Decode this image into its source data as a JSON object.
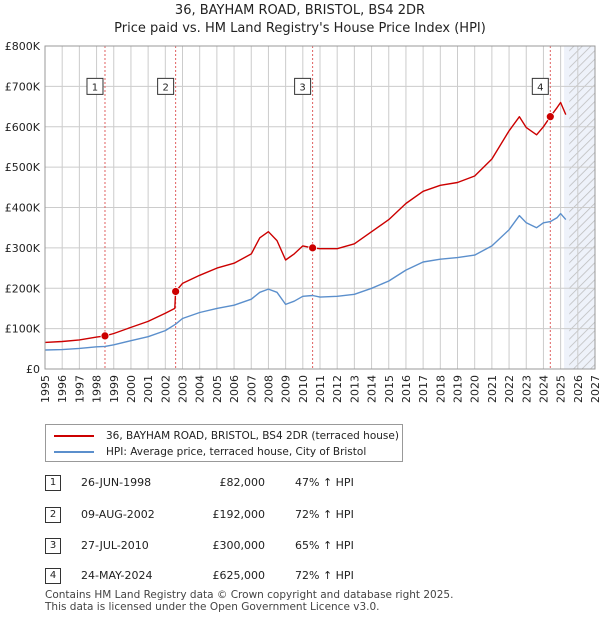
{
  "title_line1": "36, BAYHAM ROAD, BRISTOL, BS4 2DR",
  "title_line2": "Price paid vs. HM Land Registry's House Price Index (HPI)",
  "legend": {
    "property": "36, BAYHAM ROAD, BRISTOL, BS4 2DR (terraced house)",
    "hpi": "HPI: Average price, terraced house, City of Bristol"
  },
  "transactions": [
    {
      "num": "1",
      "date": "26-JUN-1998",
      "price": "£82,000",
      "hpi": "47% ↑ HPI"
    },
    {
      "num": "2",
      "date": "09-AUG-2002",
      "price": "£192,000",
      "hpi": "72% ↑ HPI"
    },
    {
      "num": "3",
      "date": "27-JUL-2010",
      "price": "£300,000",
      "hpi": "65% ↑ HPI"
    },
    {
      "num": "4",
      "date": "24-MAY-2024",
      "price": "£625,000",
      "hpi": "72% ↑ HPI"
    }
  ],
  "footer_line1": "Contains HM Land Registry data © Crown copyright and database right 2025.",
  "footer_line2": "This data is licensed under the Open Government Licence v3.0.",
  "colors": {
    "property": "#cc0000",
    "hpi": "#5b8fcc",
    "marker": "#cc0000",
    "vline": "#e06060",
    "grid": "#cccccc",
    "shade": "#eef2fa"
  },
  "chart_data": {
    "type": "line",
    "xlim": [
      1995,
      2027
    ],
    "ylim": [
      0,
      800000
    ],
    "x_ticks": [
      1995,
      1996,
      1997,
      1998,
      1999,
      2000,
      2001,
      2002,
      2003,
      2004,
      2005,
      2006,
      2007,
      2008,
      2009,
      2010,
      2011,
      2012,
      2013,
      2014,
      2015,
      2016,
      2017,
      2018,
      2019,
      2020,
      2021,
      2022,
      2023,
      2024,
      2025,
      2026,
      2027
    ],
    "y_ticks": [
      {
        "value": 0,
        "label": "£0"
      },
      {
        "value": 100000,
        "label": "£100K"
      },
      {
        "value": 200000,
        "label": "£200K"
      },
      {
        "value": 300000,
        "label": "£300K"
      },
      {
        "value": 400000,
        "label": "£400K"
      },
      {
        "value": 500000,
        "label": "£500K"
      },
      {
        "value": 600000,
        "label": "£600K"
      },
      {
        "value": 700000,
        "label": "£700K"
      },
      {
        "value": 800000,
        "label": "£800K"
      }
    ],
    "shaded_from": 2025.2,
    "hatched_from": 2025.5,
    "sales": [
      {
        "label": "1",
        "x": 1998.49,
        "y": 82000
      },
      {
        "label": "2",
        "x": 2002.6,
        "y": 192000
      },
      {
        "label": "3",
        "x": 2010.57,
        "y": 300000
      },
      {
        "label": "4",
        "x": 2024.4,
        "y": 625000
      }
    ],
    "series": [
      {
        "name": "36, BAYHAM ROAD, BRISTOL, BS4 2DR (terraced house)",
        "points": [
          [
            1995.0,
            66000
          ],
          [
            1996.0,
            68000
          ],
          [
            1997.0,
            72000
          ],
          [
            1998.0,
            79000
          ],
          [
            1998.49,
            82000
          ],
          [
            1999.0,
            88000
          ],
          [
            2000.0,
            103000
          ],
          [
            2001.0,
            118000
          ],
          [
            2002.0,
            138000
          ],
          [
            2002.55,
            150000
          ],
          [
            2002.6,
            192000
          ],
          [
            2003.0,
            212000
          ],
          [
            2004.0,
            232000
          ],
          [
            2005.0,
            250000
          ],
          [
            2006.0,
            262000
          ],
          [
            2007.0,
            285000
          ],
          [
            2007.5,
            325000
          ],
          [
            2008.0,
            340000
          ],
          [
            2008.5,
            318000
          ],
          [
            2009.0,
            270000
          ],
          [
            2009.5,
            285000
          ],
          [
            2010.0,
            305000
          ],
          [
            2010.57,
            300000
          ],
          [
            2011.0,
            298000
          ],
          [
            2012.0,
            298000
          ],
          [
            2013.0,
            310000
          ],
          [
            2014.0,
            340000
          ],
          [
            2015.0,
            370000
          ],
          [
            2016.0,
            410000
          ],
          [
            2017.0,
            440000
          ],
          [
            2018.0,
            455000
          ],
          [
            2019.0,
            462000
          ],
          [
            2020.0,
            478000
          ],
          [
            2021.0,
            520000
          ],
          [
            2022.0,
            590000
          ],
          [
            2022.6,
            625000
          ],
          [
            2023.0,
            598000
          ],
          [
            2023.6,
            580000
          ],
          [
            2024.0,
            600000
          ],
          [
            2024.4,
            625000
          ],
          [
            2024.8,
            648000
          ],
          [
            2025.0,
            660000
          ],
          [
            2025.3,
            630000
          ]
        ]
      },
      {
        "name": "HPI: Average price, terraced house, City of Bristol",
        "points": [
          [
            1995.0,
            47000
          ],
          [
            1996.0,
            48000
          ],
          [
            1997.0,
            51000
          ],
          [
            1998.0,
            55000
          ],
          [
            1998.49,
            56000
          ],
          [
            1999.0,
            60000
          ],
          [
            2000.0,
            70000
          ],
          [
            2001.0,
            80000
          ],
          [
            2002.0,
            95000
          ],
          [
            2002.6,
            111000
          ],
          [
            2003.0,
            125000
          ],
          [
            2004.0,
            140000
          ],
          [
            2005.0,
            150000
          ],
          [
            2006.0,
            158000
          ],
          [
            2007.0,
            173000
          ],
          [
            2007.5,
            190000
          ],
          [
            2008.0,
            198000
          ],
          [
            2008.5,
            190000
          ],
          [
            2009.0,
            160000
          ],
          [
            2009.5,
            168000
          ],
          [
            2010.0,
            180000
          ],
          [
            2010.57,
            182000
          ],
          [
            2011.0,
            178000
          ],
          [
            2012.0,
            180000
          ],
          [
            2013.0,
            185000
          ],
          [
            2014.0,
            200000
          ],
          [
            2015.0,
            218000
          ],
          [
            2016.0,
            245000
          ],
          [
            2017.0,
            265000
          ],
          [
            2018.0,
            272000
          ],
          [
            2019.0,
            276000
          ],
          [
            2020.0,
            282000
          ],
          [
            2021.0,
            305000
          ],
          [
            2022.0,
            345000
          ],
          [
            2022.6,
            380000
          ],
          [
            2023.0,
            362000
          ],
          [
            2023.6,
            350000
          ],
          [
            2024.0,
            362000
          ],
          [
            2024.4,
            365000
          ],
          [
            2024.8,
            375000
          ],
          [
            2025.0,
            385000
          ],
          [
            2025.3,
            370000
          ]
        ]
      }
    ]
  }
}
